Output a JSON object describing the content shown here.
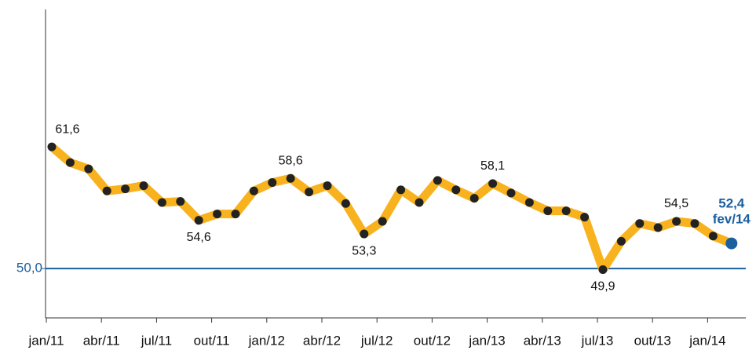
{
  "chart_data": {
    "type": "line",
    "categories": [
      "jan/11",
      null,
      null,
      "abr/11",
      null,
      null,
      "jul/11",
      null,
      null,
      "out/11",
      null,
      null,
      "jan/12",
      null,
      null,
      "abr/12",
      null,
      null,
      "jul/12",
      null,
      null,
      "out/12",
      null,
      null,
      "jan/13",
      null,
      null,
      "abr/13",
      null,
      null,
      "jul/13",
      null,
      null,
      "out/13",
      null,
      null,
      "jan/14",
      "fev/14"
    ],
    "series": [
      {
        "color": "#f7b21e",
        "marker_color": "#222222",
        "last_color": "#1a5fa0",
        "values": [
          61.6,
          60.1,
          59.5,
          57.4,
          57.6,
          57.9,
          56.3,
          56.4,
          54.6,
          55.2,
          55.2,
          57.4,
          58.2,
          58.6,
          57.3,
          57.9,
          56.2,
          53.3,
          54.5,
          57.5,
          56.3,
          58.4,
          57.5,
          56.7,
          58.1,
          57.2,
          56.3,
          55.5,
          55.5,
          54.9,
          49.9,
          52.6,
          54.3,
          53.9,
          54.5,
          54.3,
          53.1,
          52.4
        ],
        "value_labels": [
          "61,6",
          null,
          null,
          null,
          null,
          null,
          null,
          null,
          "54,6",
          null,
          null,
          null,
          null,
          "58,6",
          null,
          null,
          null,
          "53,3",
          null,
          null,
          null,
          null,
          null,
          null,
          "58,1",
          null,
          null,
          null,
          null,
          null,
          "49,9",
          null,
          null,
          null,
          "54,5",
          null,
          null,
          "52,4"
        ]
      }
    ],
    "ylim": [
      45.3,
      74.7
    ],
    "yticks": [
      {
        "value": 50,
        "label": "50,0"
      }
    ],
    "grid": true,
    "grid_color": "#1a5fa0"
  }
}
